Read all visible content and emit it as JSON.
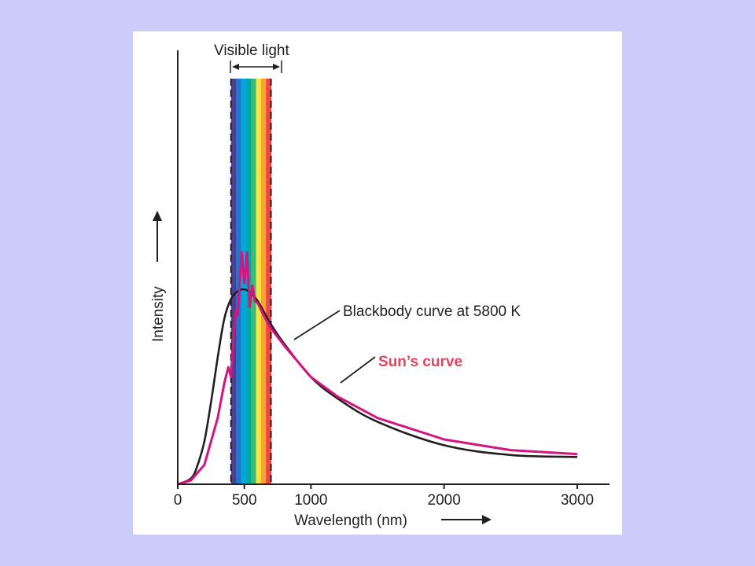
{
  "colors": {
    "background": "#ccccfa",
    "panel": "#ffffff",
    "axis": "#231f20",
    "blackbody": "#231f20",
    "sun": "#d4157f",
    "sun_label": "#e0445f",
    "spectrum": [
      "#4b3f97",
      "#2a73c7",
      "#00a7e2",
      "#00a99d",
      "#3cb878",
      "#f6e442",
      "#f7a531",
      "#ef4747"
    ]
  },
  "chart_data": {
    "type": "line",
    "xlabel": "Wavelength (nm)",
    "ylabel": "Intensity",
    "xlim": [
      0,
      3000
    ],
    "ylim": [
      0,
      1
    ],
    "x_ticks": [
      {
        "value": 0,
        "label": "0"
      },
      {
        "value": 500,
        "label": "500"
      },
      {
        "value": 1000,
        "label": "1000"
      },
      {
        "value": 2000,
        "label": "2000"
      },
      {
        "value": 3000,
        "label": "3000"
      }
    ],
    "visible_band": {
      "label": "Visible light",
      "range": [
        400,
        700
      ]
    },
    "series": [
      {
        "name": "Blackbody curve at 5800 K",
        "label": "Blackbody curve at 5800 K",
        "color": "#231f20",
        "x": [
          0,
          100,
          150,
          200,
          250,
          300,
          350,
          400,
          450,
          500,
          550,
          600,
          650,
          700,
          800,
          1000,
          1200,
          1500,
          2000,
          2500,
          3000
        ],
        "y": [
          0,
          0.03,
          0.1,
          0.22,
          0.42,
          0.65,
          0.85,
          0.95,
          0.99,
          1.0,
          0.98,
          0.94,
          0.88,
          0.82,
          0.72,
          0.55,
          0.44,
          0.32,
          0.2,
          0.15,
          0.14
        ]
      },
      {
        "name": "Sun's curve",
        "label": "Sun’s curve",
        "color": "#d4157f",
        "x": [
          0,
          100,
          200,
          300,
          350,
          380,
          400,
          420,
          440,
          450,
          480,
          500,
          520,
          540,
          560,
          580,
          600,
          650,
          700,
          800,
          1000,
          1200,
          1500,
          2000,
          2500,
          3000
        ],
        "y": [
          0,
          0.02,
          0.1,
          0.34,
          0.52,
          0.6,
          0.55,
          0.77,
          0.9,
          0.87,
          1.19,
          1.03,
          1.19,
          0.91,
          1.02,
          0.94,
          0.93,
          0.86,
          0.8,
          0.71,
          0.55,
          0.45,
          0.34,
          0.23,
          0.175,
          0.155
        ]
      }
    ]
  }
}
